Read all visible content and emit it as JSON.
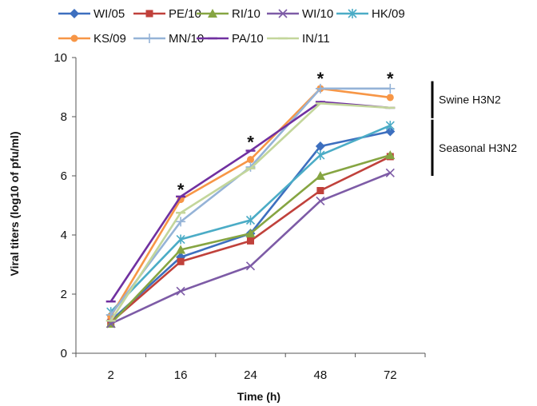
{
  "chart_data": {
    "type": "line",
    "categories": [
      "2",
      "16",
      "24",
      "48",
      "72"
    ],
    "xlabel": "Time (h)",
    "ylabel": "Viral titers (log10 of pfu/ml)",
    "ylim": [
      0,
      10
    ],
    "yticks": [
      0,
      2,
      4,
      6,
      8,
      10
    ],
    "grid": false,
    "legend_position": "top",
    "series": [
      {
        "name": "WI/05",
        "color": "#3d6fbf",
        "marker": "diamond",
        "values": [
          1.1,
          3.25,
          4.05,
          7.0,
          7.5
        ]
      },
      {
        "name": "PE/10",
        "color": "#c0413b",
        "marker": "square",
        "values": [
          1.05,
          3.1,
          3.8,
          5.5,
          6.65
        ]
      },
      {
        "name": "RI/10",
        "color": "#86a542",
        "marker": "triangle",
        "values": [
          1.0,
          3.5,
          4.05,
          6.0,
          6.7
        ]
      },
      {
        "name": "WI/10",
        "color": "#7d5ba6",
        "marker": "x",
        "values": [
          1.0,
          2.1,
          2.95,
          5.15,
          6.1
        ]
      },
      {
        "name": "HK/09",
        "color": "#4bacc6",
        "marker": "asterisk",
        "values": [
          1.4,
          3.85,
          4.5,
          6.7,
          7.7
        ]
      },
      {
        "name": "KS/09",
        "color": "#f79646",
        "marker": "circle",
        "values": [
          1.25,
          5.2,
          6.55,
          8.95,
          8.65
        ]
      },
      {
        "name": "MN/10",
        "color": "#95b3d7",
        "marker": "plus",
        "values": [
          1.3,
          4.45,
          6.3,
          8.95,
          8.95
        ]
      },
      {
        "name": "PA/10",
        "color": "#7030a0",
        "marker": "dash",
        "values": [
          1.75,
          5.3,
          6.85,
          8.5,
          8.3
        ]
      },
      {
        "name": "IN/11",
        "color": "#c3d69b",
        "marker": "dash",
        "values": [
          1.1,
          4.75,
          6.25,
          8.45,
          8.3
        ]
      }
    ],
    "annotations": [
      {
        "text": "*",
        "x": "16",
        "y": 5.6
      },
      {
        "text": "*",
        "x": "24",
        "y": 7.2
      },
      {
        "text": "*",
        "x": "48",
        "y": 9.35
      },
      {
        "text": "*",
        "x": "72",
        "y": 9.35
      }
    ],
    "groups": [
      {
        "label": "Swine H3N2",
        "from": 7.95,
        "to": 9.2
      },
      {
        "label": "Seasonal H3N2",
        "from": 6.0,
        "to": 7.9
      }
    ]
  }
}
